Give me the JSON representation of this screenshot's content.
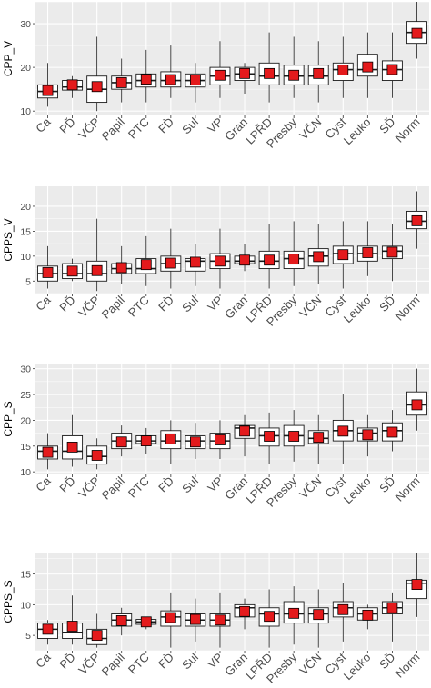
{
  "chart_data": [
    {
      "type": "boxplot",
      "ylabel": "CPP_V",
      "ylim": [
        9,
        35
      ],
      "yticks": [
        10,
        20,
        30
      ],
      "categories": [
        "Ca",
        "PĎ",
        "VČP",
        "Papil",
        "PTC",
        "FĎ",
        "Sul",
        "VP",
        "Gran",
        "LPŘD",
        "Presby",
        "VČN",
        "Cyst",
        "Leuko",
        "SĎ",
        "Norm"
      ],
      "boxes": [
        {
          "min": 11,
          "q1": 13.0,
          "median": 14.5,
          "q3": 16.0,
          "max": 21,
          "mean": 14.7
        },
        {
          "min": 13,
          "q1": 14.8,
          "median": 15.5,
          "q3": 17.0,
          "max": 18,
          "mean": 16.0
        },
        {
          "min": 10,
          "q1": 12.0,
          "median": 15.0,
          "q3": 18.0,
          "max": 27,
          "mean": 15.6
        },
        {
          "min": 12,
          "q1": 15.0,
          "median": 16.5,
          "q3": 18.0,
          "max": 22,
          "mean": 16.5
        },
        {
          "min": 12,
          "q1": 15.5,
          "median": 17.0,
          "q3": 18.5,
          "max": 24,
          "mean": 17.3
        },
        {
          "min": 13,
          "q1": 15.5,
          "median": 17.0,
          "q3": 19.0,
          "max": 25,
          "mean": 17.2
        },
        {
          "min": 12,
          "q1": 15.5,
          "median": 17.0,
          "q3": 18.5,
          "max": 21,
          "mean": 17.1
        },
        {
          "min": 13,
          "q1": 16.0,
          "median": 18.0,
          "q3": 20.0,
          "max": 26,
          "mean": 18.2
        },
        {
          "min": 14,
          "q1": 17.0,
          "median": 18.5,
          "q3": 20.0,
          "max": 21,
          "mean": 18.6
        },
        {
          "min": 12,
          "q1": 16.0,
          "median": 18.0,
          "q3": 21.0,
          "max": 28,
          "mean": 18.6
        },
        {
          "min": 13,
          "q1": 16.0,
          "median": 18.0,
          "q3": 20.5,
          "max": 27,
          "mean": 18.2
        },
        {
          "min": 12,
          "q1": 16.0,
          "median": 18.0,
          "q3": 20.5,
          "max": 26,
          "mean": 18.6
        },
        {
          "min": 13,
          "q1": 17.0,
          "median": 19.5,
          "q3": 21.0,
          "max": 27,
          "mean": 19.4
        },
        {
          "min": 13,
          "q1": 18.0,
          "median": 19.5,
          "q3": 23.0,
          "max": 28,
          "mean": 20.1
        },
        {
          "min": 13,
          "q1": 17.0,
          "median": 19.5,
          "q3": 21.5,
          "max": 28,
          "mean": 19.5
        },
        {
          "min": 22,
          "q1": 25.5,
          "median": 28.0,
          "q3": 30.5,
          "max": 35,
          "mean": 27.8
        }
      ]
    },
    {
      "type": "boxplot",
      "ylabel": "CPPS_V",
      "ylim": [
        2.5,
        24
      ],
      "yticks": [
        5,
        10,
        15,
        20
      ],
      "categories": [
        "Ca",
        "PĎ",
        "VČP",
        "Papil",
        "PTC",
        "FĎ",
        "Sul",
        "VP",
        "Gran",
        "LPŘD",
        "Presby",
        "VČN",
        "Cyst",
        "Leuko",
        "SĎ",
        "Norm"
      ],
      "boxes": [
        {
          "min": 3.5,
          "q1": 5.0,
          "median": 6.5,
          "q3": 8.0,
          "max": 12,
          "mean": 6.7
        },
        {
          "min": 5.0,
          "q1": 5.5,
          "median": 6.5,
          "q3": 8.5,
          "max": 9.5,
          "mean": 7.0
        },
        {
          "min": 3.0,
          "q1": 5.0,
          "median": 6.5,
          "q3": 9.0,
          "max": 17.5,
          "mean": 7.1
        },
        {
          "min": 4.5,
          "q1": 6.5,
          "median": 7.5,
          "q3": 8.5,
          "max": 12,
          "mean": 7.7
        },
        {
          "min": 4.0,
          "q1": 6.5,
          "median": 7.5,
          "q3": 9.5,
          "max": 14,
          "mean": 8.3
        },
        {
          "min": 3.5,
          "q1": 7.0,
          "median": 8.5,
          "q3": 10.0,
          "max": 15.5,
          "mean": 8.6
        },
        {
          "min": 4.0,
          "q1": 7.0,
          "median": 9.0,
          "q3": 9.5,
          "max": 12.5,
          "mean": 8.8
        },
        {
          "min": 3.5,
          "q1": 7.5,
          "median": 9.0,
          "q3": 10.5,
          "max": 15.5,
          "mean": 9.0
        },
        {
          "min": 7.0,
          "q1": 8.5,
          "median": 9.0,
          "q3": 10.0,
          "max": 12.5,
          "mean": 9.2
        },
        {
          "min": 3.5,
          "q1": 7.5,
          "median": 9.0,
          "q3": 11.0,
          "max": 16.5,
          "mean": 9.2
        },
        {
          "min": 4.0,
          "q1": 7.5,
          "median": 9.5,
          "q3": 11.0,
          "max": 17,
          "mean": 9.4
        },
        {
          "min": 4.5,
          "q1": 8.0,
          "median": 10.0,
          "q3": 11.5,
          "max": 16.5,
          "mean": 9.9
        },
        {
          "min": 3.5,
          "q1": 8.5,
          "median": 10.5,
          "q3": 12.0,
          "max": 17,
          "mean": 10.3
        },
        {
          "min": 6.0,
          "q1": 9.0,
          "median": 10.5,
          "q3": 12.0,
          "max": 17,
          "mean": 10.7
        },
        {
          "min": 5.0,
          "q1": 9.5,
          "median": 11.0,
          "q3": 12.0,
          "max": 16.5,
          "mean": 10.8
        },
        {
          "min": 11.5,
          "q1": 15.5,
          "median": 17.0,
          "q3": 19.0,
          "max": 23,
          "mean": 17.1
        }
      ]
    },
    {
      "type": "boxplot",
      "ylabel": "CPP_S",
      "ylim": [
        9.5,
        31
      ],
      "yticks": [
        10,
        15,
        20,
        25,
        30
      ],
      "categories": [
        "Ca",
        "PĎ",
        "VČP",
        "Papil",
        "PTC",
        "FĎ",
        "Sul",
        "VP",
        "Gran",
        "LPŘD",
        "Presby",
        "VČN",
        "Cyst",
        "Leuko",
        "SĎ",
        "Norm"
      ],
      "boxes": [
        {
          "min": 10.5,
          "q1": 12.5,
          "median": 14.0,
          "q3": 15.0,
          "max": 17.5,
          "mean": 13.8
        },
        {
          "min": 11.0,
          "q1": 12.5,
          "median": 14.0,
          "q3": 17.0,
          "max": 21,
          "mean": 14.8
        },
        {
          "min": 10.5,
          "q1": 11.5,
          "median": 13.0,
          "q3": 15.0,
          "max": 16.5,
          "mean": 13.2
        },
        {
          "min": 13.0,
          "q1": 14.5,
          "median": 16.0,
          "q3": 17.5,
          "max": 19,
          "mean": 15.8
        },
        {
          "min": 13.5,
          "q1": 15.5,
          "median": 16.0,
          "q3": 17.0,
          "max": 18.5,
          "mean": 16.0
        },
        {
          "min": 11.5,
          "q1": 14.5,
          "median": 16.0,
          "q3": 18.0,
          "max": 20,
          "mean": 16.4
        },
        {
          "min": 12.5,
          "q1": 14.5,
          "median": 16.0,
          "q3": 17.0,
          "max": 19.5,
          "mean": 15.8
        },
        {
          "min": 12.5,
          "q1": 14.5,
          "median": 16.0,
          "q3": 17.5,
          "max": 20,
          "mean": 16.2
        },
        {
          "min": 13.0,
          "q1": 16.5,
          "median": 18.5,
          "q3": 19.0,
          "max": 21,
          "mean": 17.9
        },
        {
          "min": 11.5,
          "q1": 15.0,
          "median": 17.0,
          "q3": 18.5,
          "max": 21.5,
          "mean": 16.9
        },
        {
          "min": 12.0,
          "q1": 15.0,
          "median": 17.0,
          "q3": 19.0,
          "max": 22,
          "mean": 16.9
        },
        {
          "min": 11.5,
          "q1": 15.5,
          "median": 16.5,
          "q3": 18.0,
          "max": 21,
          "mean": 16.7
        },
        {
          "min": 11.5,
          "q1": 16.0,
          "median": 18.0,
          "q3": 20.0,
          "max": 25,
          "mean": 17.9
        },
        {
          "min": 13.0,
          "q1": 16.0,
          "median": 17.5,
          "q3": 18.5,
          "max": 21,
          "mean": 17.2
        },
        {
          "min": 14.0,
          "q1": 16.0,
          "median": 18.0,
          "q3": 19.5,
          "max": 22,
          "mean": 17.7
        },
        {
          "min": 18.0,
          "q1": 21.0,
          "median": 23.0,
          "q3": 25.5,
          "max": 30,
          "mean": 23.0
        }
      ]
    },
    {
      "type": "boxplot",
      "ylabel": "CPPS_S",
      "ylim": [
        2.5,
        18.5
      ],
      "yticks": [
        5,
        10,
        15
      ],
      "categories": [
        "Ca",
        "PĎ",
        "VČP",
        "Papil",
        "PTC",
        "FĎ",
        "Sul",
        "VP",
        "Gran",
        "LPŘD",
        "Presby",
        "VČN",
        "Cyst",
        "Leuko",
        "SĎ",
        "Norm"
      ],
      "boxes": [
        {
          "min": 3.5,
          "q1": 4.5,
          "median": 6.0,
          "q3": 7.0,
          "max": 7.5,
          "mean": 6.0
        },
        {
          "min": 3.5,
          "q1": 4.5,
          "median": 5.5,
          "q3": 7.0,
          "max": 11.5,
          "mean": 6.5
        },
        {
          "min": 3.0,
          "q1": 3.5,
          "median": 4.5,
          "q3": 6.0,
          "max": 8.5,
          "mean": 5.0
        },
        {
          "min": 5.0,
          "q1": 6.5,
          "median": 7.5,
          "q3": 8.5,
          "max": 9.5,
          "mean": 7.4
        },
        {
          "min": 6.0,
          "q1": 6.8,
          "median": 7.2,
          "q3": 7.6,
          "max": 8.0,
          "mean": 7.2
        },
        {
          "min": 3.0,
          "q1": 6.5,
          "median": 8.0,
          "q3": 9.0,
          "max": 12,
          "mean": 7.9
        },
        {
          "min": 4.0,
          "q1": 6.5,
          "median": 7.5,
          "q3": 8.5,
          "max": 11,
          "mean": 7.6
        },
        {
          "min": 3.0,
          "q1": 6.5,
          "median": 7.5,
          "q3": 8.5,
          "max": 12,
          "mean": 7.5
        },
        {
          "min": 6.0,
          "q1": 8.0,
          "median": 9.5,
          "q3": 10.0,
          "max": 11,
          "mean": 8.9
        },
        {
          "min": 3.0,
          "q1": 6.5,
          "median": 8.5,
          "q3": 9.5,
          "max": 12.5,
          "mean": 8.1
        },
        {
          "min": 3.5,
          "q1": 7.0,
          "median": 8.5,
          "q3": 10.5,
          "max": 13,
          "mean": 8.6
        },
        {
          "min": 3.0,
          "q1": 7.0,
          "median": 8.5,
          "q3": 9.5,
          "max": 12.5,
          "mean": 8.4
        },
        {
          "min": 4.0,
          "q1": 8.0,
          "median": 9.5,
          "q3": 10.5,
          "max": 13.5,
          "mean": 9.2
        },
        {
          "min": 6.0,
          "q1": 7.5,
          "median": 8.5,
          "q3": 9.5,
          "max": 10,
          "mean": 8.3
        },
        {
          "min": 4.0,
          "q1": 8.5,
          "median": 9.5,
          "q3": 10.5,
          "max": 12,
          "mean": 9.5
        },
        {
          "min": 8.0,
          "q1": 11.0,
          "median": 13.5,
          "q3": 14.0,
          "max": 18.5,
          "mean": 13.3
        }
      ]
    }
  ],
  "colors": {
    "panel_background": "#ebebeb",
    "grid": "#ffffff",
    "box_fill": "#ffffff",
    "box_stroke": "#1a1a1a",
    "mean_marker": "#e41a1c"
  }
}
